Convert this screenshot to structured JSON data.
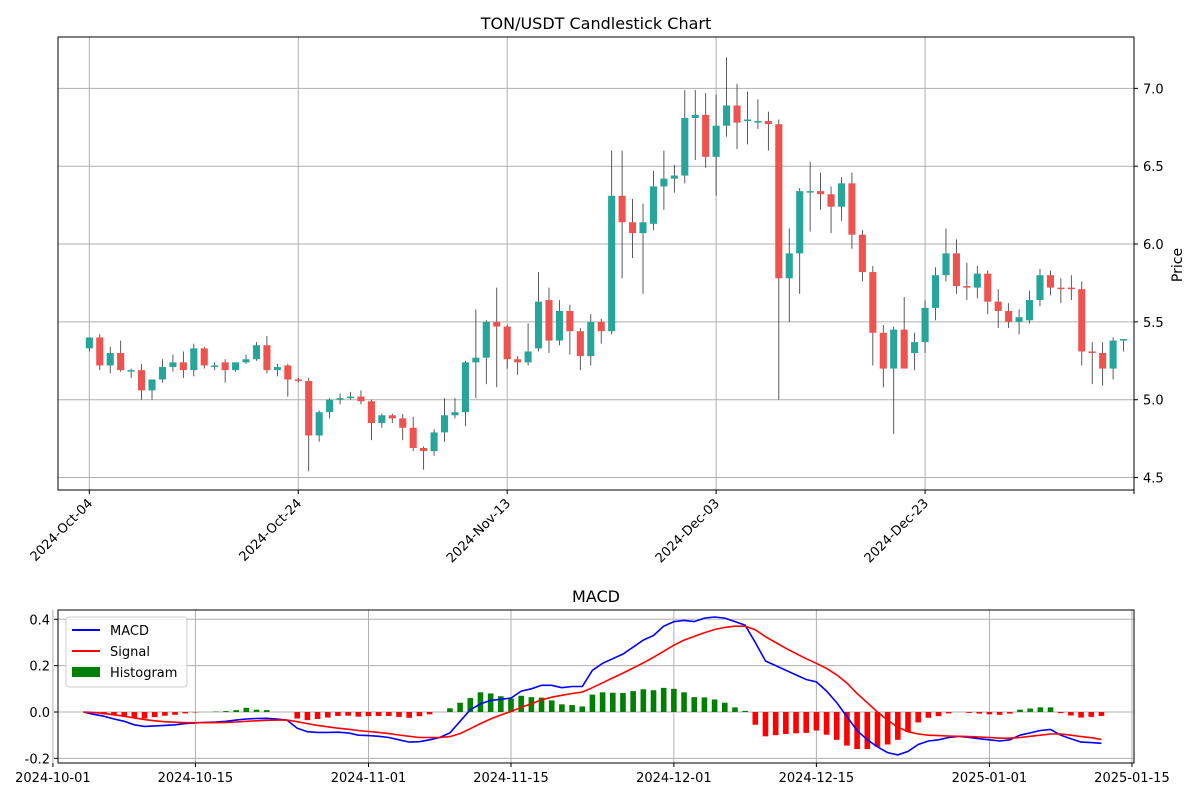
{
  "chart_data": [
    {
      "type": "candlestick",
      "title": "TON/USDT Candlestick Chart",
      "ylabel": "Price",
      "xlabel": "",
      "y_axis_side": "right",
      "ylim": [
        4.42,
        7.33
      ],
      "x_start": "2024-10-04",
      "x_days_range": [
        -3,
        100
      ],
      "yticks": [
        4.5,
        5.0,
        5.5,
        6.0,
        6.5,
        7.0
      ],
      "xtick_labels": [
        "2024-Oct-04",
        "2024-Oct-24",
        "2024-Nov-13",
        "2024-Dec-03",
        "2024-Dec-23"
      ],
      "xtick_days": [
        0,
        20,
        40,
        60,
        80,
        100
      ],
      "grid": true,
      "up_color": "#26a69a",
      "down_color": "#ef5350",
      "candles": [
        [
          "2024-10-04",
          5.33,
          5.4,
          5.31,
          5.4
        ],
        [
          "2024-10-05",
          5.4,
          5.42,
          5.19,
          5.22
        ],
        [
          "2024-10-06",
          5.22,
          5.34,
          5.17,
          5.3
        ],
        [
          "2024-10-07",
          5.3,
          5.38,
          5.18,
          5.19
        ],
        [
          "2024-10-08",
          5.19,
          5.2,
          5.14,
          5.19
        ],
        [
          "2024-10-09",
          5.19,
          5.23,
          5.0,
          5.06
        ],
        [
          "2024-10-10",
          5.06,
          5.13,
          5.0,
          5.13
        ],
        [
          "2024-10-11",
          5.13,
          5.26,
          5.11,
          5.21
        ],
        [
          "2024-10-12",
          5.21,
          5.29,
          5.18,
          5.24
        ],
        [
          "2024-10-13",
          5.24,
          5.31,
          5.14,
          5.19
        ],
        [
          "2024-10-14",
          5.19,
          5.36,
          5.15,
          5.33
        ],
        [
          "2024-10-15",
          5.33,
          5.34,
          5.2,
          5.22
        ],
        [
          "2024-10-16",
          5.22,
          5.24,
          5.19,
          5.22
        ],
        [
          "2024-10-17",
          5.24,
          5.26,
          5.11,
          5.19
        ],
        [
          "2024-10-18",
          5.19,
          5.24,
          5.18,
          5.24
        ],
        [
          "2024-10-19",
          5.24,
          5.29,
          5.23,
          5.26
        ],
        [
          "2024-10-20",
          5.26,
          5.37,
          5.25,
          5.35
        ],
        [
          "2024-10-21",
          5.35,
          5.41,
          5.17,
          5.19
        ],
        [
          "2024-10-22",
          5.19,
          5.23,
          5.15,
          5.21
        ],
        [
          "2024-10-23",
          5.22,
          5.23,
          5.02,
          5.13
        ],
        [
          "2024-10-24",
          5.13,
          5.14,
          5.11,
          5.12
        ],
        [
          "2024-10-25",
          5.12,
          5.14,
          4.54,
          4.77
        ],
        [
          "2024-10-26",
          4.77,
          4.93,
          4.73,
          4.92
        ],
        [
          "2024-10-27",
          4.92,
          5.01,
          4.88,
          5.0
        ],
        [
          "2024-10-28",
          5.0,
          5.04,
          4.97,
          5.01
        ],
        [
          "2024-10-29",
          5.01,
          5.05,
          5.0,
          5.02
        ],
        [
          "2024-10-30",
          5.02,
          5.06,
          4.97,
          4.99
        ],
        [
          "2024-10-31",
          4.99,
          5.0,
          4.74,
          4.85
        ],
        [
          "2024-11-01",
          4.85,
          4.91,
          4.82,
          4.9
        ],
        [
          "2024-11-02",
          4.9,
          4.91,
          4.85,
          4.88
        ],
        [
          "2024-11-03",
          4.88,
          4.91,
          4.74,
          4.82
        ],
        [
          "2024-11-04",
          4.82,
          4.89,
          4.67,
          4.69
        ],
        [
          "2024-11-05",
          4.69,
          4.7,
          4.55,
          4.67
        ],
        [
          "2024-11-06",
          4.67,
          4.81,
          4.64,
          4.79
        ],
        [
          "2024-11-07",
          4.79,
          5.01,
          4.73,
          4.9
        ],
        [
          "2024-11-08",
          4.9,
          5.01,
          4.88,
          4.92
        ],
        [
          "2024-11-09",
          4.92,
          5.25,
          4.83,
          5.24
        ],
        [
          "2024-11-10",
          5.24,
          5.58,
          5.01,
          5.27
        ],
        [
          "2024-11-11",
          5.27,
          5.51,
          5.1,
          5.5
        ],
        [
          "2024-11-12",
          5.5,
          5.72,
          5.08,
          5.47
        ],
        [
          "2024-11-13",
          5.47,
          5.48,
          5.2,
          5.26
        ],
        [
          "2024-11-14",
          5.26,
          5.28,
          5.16,
          5.24
        ],
        [
          "2024-11-15",
          5.24,
          5.49,
          5.22,
          5.31
        ],
        [
          "2024-11-16",
          5.33,
          5.82,
          5.31,
          5.63
        ],
        [
          "2024-11-17",
          5.64,
          5.72,
          5.3,
          5.38
        ],
        [
          "2024-11-18",
          5.38,
          5.64,
          5.35,
          5.57
        ],
        [
          "2024-11-19",
          5.57,
          5.61,
          5.29,
          5.44
        ],
        [
          "2024-11-20",
          5.44,
          5.46,
          5.19,
          5.28
        ],
        [
          "2024-11-21",
          5.28,
          5.55,
          5.22,
          5.5
        ],
        [
          "2024-11-22",
          5.5,
          5.52,
          5.36,
          5.44
        ],
        [
          "2024-11-23",
          5.44,
          6.6,
          5.42,
          6.31
        ],
        [
          "2024-11-24",
          6.31,
          6.6,
          5.78,
          6.14
        ],
        [
          "2024-11-25",
          6.14,
          6.29,
          5.91,
          6.07
        ],
        [
          "2024-11-26",
          6.07,
          6.26,
          5.68,
          6.14
        ],
        [
          "2024-11-27",
          6.13,
          6.47,
          6.09,
          6.37
        ],
        [
          "2024-11-28",
          6.37,
          6.6,
          6.22,
          6.42
        ],
        [
          "2024-11-29",
          6.42,
          6.51,
          6.33,
          6.44
        ],
        [
          "2024-11-30",
          6.44,
          6.99,
          6.39,
          6.81
        ],
        [
          "2024-12-01",
          6.81,
          6.99,
          6.54,
          6.83
        ],
        [
          "2024-12-02",
          6.83,
          6.97,
          6.49,
          6.56
        ],
        [
          "2024-12-03",
          6.56,
          6.96,
          6.31,
          6.76
        ],
        [
          "2024-12-04",
          6.76,
          7.2,
          6.69,
          6.89
        ],
        [
          "2024-12-05",
          6.89,
          7.03,
          6.61,
          6.78
        ],
        [
          "2024-12-06",
          6.79,
          6.98,
          6.64,
          6.8
        ],
        [
          "2024-12-07",
          6.79,
          6.93,
          6.74,
          6.79
        ],
        [
          "2024-12-08",
          6.79,
          6.85,
          6.6,
          6.77
        ],
        [
          "2024-12-09",
          6.77,
          6.8,
          5.0,
          5.78
        ],
        [
          "2024-12-10",
          5.78,
          6.1,
          5.5,
          5.94
        ],
        [
          "2024-12-11",
          5.94,
          6.36,
          5.68,
          6.34
        ],
        [
          "2024-12-12",
          6.34,
          6.53,
          6.08,
          6.34
        ],
        [
          "2024-12-13",
          6.34,
          6.46,
          6.22,
          6.32
        ],
        [
          "2024-12-14",
          6.32,
          6.37,
          6.07,
          6.24
        ],
        [
          "2024-12-15",
          6.24,
          6.43,
          6.15,
          6.39
        ],
        [
          "2024-12-16",
          6.39,
          6.46,
          5.97,
          6.06
        ],
        [
          "2024-12-17",
          6.06,
          6.09,
          5.76,
          5.82
        ],
        [
          "2024-12-18",
          5.82,
          5.86,
          5.22,
          5.43
        ],
        [
          "2024-12-19",
          5.43,
          5.48,
          5.08,
          5.2
        ],
        [
          "2024-12-20",
          5.2,
          5.47,
          4.78,
          5.45
        ],
        [
          "2024-12-21",
          5.45,
          5.66,
          5.22,
          5.2
        ],
        [
          "2024-12-22",
          5.3,
          5.43,
          5.19,
          5.37
        ],
        [
          "2024-12-23",
          5.37,
          5.64,
          5.3,
          5.59
        ],
        [
          "2024-12-24",
          5.59,
          5.85,
          5.51,
          5.8
        ],
        [
          "2024-12-25",
          5.8,
          6.1,
          5.76,
          5.94
        ],
        [
          "2024-12-26",
          5.94,
          6.03,
          5.68,
          5.73
        ],
        [
          "2024-12-27",
          5.73,
          5.88,
          5.64,
          5.72
        ],
        [
          "2024-12-28",
          5.72,
          5.86,
          5.65,
          5.81
        ],
        [
          "2024-12-29",
          5.81,
          5.83,
          5.55,
          5.63
        ],
        [
          "2024-12-30",
          5.63,
          5.71,
          5.46,
          5.57
        ],
        [
          "2024-12-31",
          5.57,
          5.62,
          5.46,
          5.5
        ],
        [
          "2025-01-01",
          5.5,
          5.58,
          5.42,
          5.53
        ],
        [
          "2025-01-02",
          5.51,
          5.7,
          5.49,
          5.64
        ],
        [
          "2025-01-03",
          5.64,
          5.84,
          5.6,
          5.8
        ],
        [
          "2025-01-04",
          5.8,
          5.83,
          5.67,
          5.72
        ],
        [
          "2025-01-05",
          5.72,
          5.78,
          5.62,
          5.71
        ],
        [
          "2025-01-06",
          5.72,
          5.8,
          5.64,
          5.71
        ],
        [
          "2025-01-07",
          5.71,
          5.76,
          5.22,
          5.31
        ],
        [
          "2025-01-08",
          5.31,
          5.37,
          5.1,
          5.3
        ],
        [
          "2025-01-09",
          5.3,
          5.37,
          5.09,
          5.2
        ],
        [
          "2025-01-10",
          5.2,
          5.4,
          5.13,
          5.38
        ],
        [
          "2025-01-11",
          5.38,
          5.39,
          5.31,
          5.39
        ]
      ]
    },
    {
      "type": "line+bar",
      "title": "MACD",
      "ylim": [
        -0.22,
        0.44
      ],
      "yticks": [
        -0.2,
        0.0,
        0.2,
        0.4
      ],
      "x_start": "2024-10-04",
      "x_days_range": [
        -2.5,
        103.2
      ],
      "xtick_labels": [
        "2024-10-01",
        "2024-10-15",
        "2024-11-01",
        "2024-11-15",
        "2024-12-01",
        "2024-12-15",
        "2025-01-01",
        "2025-01-15"
      ],
      "xtick_days": [
        -3,
        11,
        28,
        42,
        58,
        72,
        89,
        103
      ],
      "grid": true,
      "legend_position": "upper-left",
      "series": [
        {
          "name": "MACD",
          "color": "#0000ff",
          "values": [
            0.0,
            -0.01,
            -0.018,
            -0.03,
            -0.04,
            -0.055,
            -0.062,
            -0.06,
            -0.058,
            -0.055,
            -0.05,
            -0.047,
            -0.045,
            -0.043,
            -0.04,
            -0.035,
            -0.03,
            -0.028,
            -0.027,
            -0.03,
            -0.035,
            -0.07,
            -0.085,
            -0.088,
            -0.088,
            -0.087,
            -0.09,
            -0.1,
            -0.102,
            -0.105,
            -0.11,
            -0.12,
            -0.13,
            -0.128,
            -0.12,
            -0.11,
            -0.09,
            -0.04,
            0.01,
            0.035,
            0.05,
            0.055,
            0.06,
            0.09,
            0.1,
            0.115,
            0.115,
            0.105,
            0.11,
            0.11,
            0.18,
            0.21,
            0.23,
            0.25,
            0.28,
            0.31,
            0.33,
            0.37,
            0.39,
            0.395,
            0.39,
            0.405,
            0.41,
            0.405,
            0.39,
            0.375,
            0.3,
            0.22,
            0.2,
            0.18,
            0.16,
            0.14,
            0.13,
            0.09,
            0.04,
            -0.02,
            -0.08,
            -0.12,
            -0.15,
            -0.175,
            -0.185,
            -0.17,
            -0.14,
            -0.125,
            -0.12,
            -0.11,
            -0.105,
            -0.11,
            -0.115,
            -0.12,
            -0.125,
            -0.12,
            -0.1,
            -0.09,
            -0.08,
            -0.075,
            -0.1,
            -0.115,
            -0.13,
            -0.132,
            -0.135
          ]
        },
        {
          "name": "Signal",
          "color": "#ff0000",
          "values": [
            0.0,
            -0.002,
            -0.006,
            -0.012,
            -0.018,
            -0.026,
            -0.033,
            -0.038,
            -0.042,
            -0.044,
            -0.046,
            -0.046,
            -0.046,
            -0.046,
            -0.045,
            -0.043,
            -0.04,
            -0.038,
            -0.036,
            -0.035,
            -0.035,
            -0.042,
            -0.05,
            -0.058,
            -0.064,
            -0.07,
            -0.074,
            -0.08,
            -0.084,
            -0.088,
            -0.093,
            -0.099,
            -0.105,
            -0.11,
            -0.11,
            -0.11,
            -0.106,
            -0.093,
            -0.072,
            -0.05,
            -0.03,
            -0.013,
            0.002,
            0.02,
            0.036,
            0.052,
            0.064,
            0.072,
            0.08,
            0.086,
            0.105,
            0.126,
            0.147,
            0.168,
            0.19,
            0.212,
            0.236,
            0.262,
            0.288,
            0.31,
            0.326,
            0.342,
            0.356,
            0.365,
            0.37,
            0.37,
            0.355,
            0.325,
            0.3,
            0.275,
            0.252,
            0.23,
            0.21,
            0.188,
            0.16,
            0.125,
            0.08,
            0.04,
            0.0,
            -0.035,
            -0.065,
            -0.085,
            -0.095,
            -0.1,
            -0.102,
            -0.104,
            -0.105,
            -0.106,
            -0.108,
            -0.11,
            -0.113,
            -0.113,
            -0.11,
            -0.105,
            -0.1,
            -0.095,
            -0.095,
            -0.1,
            -0.106,
            -0.111,
            -0.118
          ]
        },
        {
          "name": "Histogram",
          "color_pos": "#008000",
          "color_neg": "#ff0000",
          "values": [
            0.0,
            -0.005,
            -0.01,
            -0.015,
            -0.02,
            -0.025,
            -0.028,
            -0.022,
            -0.016,
            -0.012,
            -0.006,
            -0.002,
            0.0,
            0.002,
            0.004,
            0.008,
            0.018,
            0.01,
            0.008,
            0.0,
            0.0,
            -0.028,
            -0.035,
            -0.03,
            -0.024,
            -0.017,
            -0.016,
            -0.02,
            -0.018,
            -0.017,
            -0.017,
            -0.021,
            -0.025,
            -0.018,
            -0.01,
            0.0,
            0.016,
            0.04,
            0.06,
            0.085,
            0.08,
            0.068,
            0.058,
            0.07,
            0.064,
            0.062,
            0.05,
            0.033,
            0.03,
            0.024,
            0.075,
            0.085,
            0.083,
            0.082,
            0.09,
            0.098,
            0.094,
            0.104,
            0.1,
            0.085,
            0.064,
            0.063,
            0.054,
            0.04,
            0.02,
            0.005,
            -0.055,
            -0.105,
            -0.1,
            -0.095,
            -0.092,
            -0.09,
            -0.08,
            -0.098,
            -0.12,
            -0.145,
            -0.16,
            -0.16,
            -0.15,
            -0.14,
            -0.12,
            -0.085,
            -0.045,
            -0.025,
            -0.018,
            -0.006,
            0.0,
            -0.004,
            -0.007,
            -0.01,
            -0.012,
            -0.007,
            0.01,
            0.015,
            0.02,
            0.02,
            -0.005,
            -0.015,
            -0.024,
            -0.021,
            -0.017
          ]
        }
      ]
    }
  ]
}
